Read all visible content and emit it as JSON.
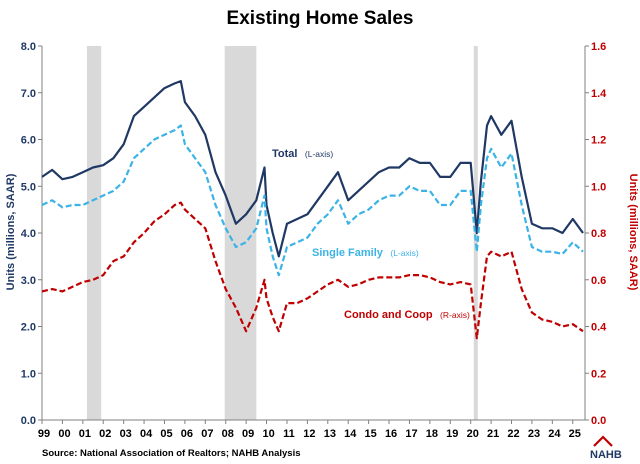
{
  "chart_data": {
    "type": "line",
    "title": "Existing Home Sales",
    "ylabel_left": "Units (millions, SAAR)",
    "ylabel_right": "Units (millions, SAAR)",
    "ylim_left": [
      0,
      8
    ],
    "ylim_right": [
      0,
      1.6
    ],
    "yticks_left": [
      "0.0",
      "1.0",
      "2.0",
      "3.0",
      "4.0",
      "5.0",
      "6.0",
      "7.0",
      "8.0"
    ],
    "yticks_right": [
      "0.0",
      "0.2",
      "0.4",
      "0.6",
      "0.8",
      "1.0",
      "1.2",
      "1.4",
      "1.6"
    ],
    "xticks": [
      "99",
      "00",
      "01",
      "02",
      "03",
      "04",
      "05",
      "06",
      "07",
      "08",
      "09",
      "10",
      "11",
      "12",
      "13",
      "14",
      "15",
      "16",
      "17",
      "18",
      "19",
      "20",
      "21",
      "22",
      "23",
      "24",
      "25"
    ],
    "xlim": [
      1999.0,
      2025.6
    ],
    "grid": false,
    "recession_shading": [
      [
        2001.2,
        2001.9
      ],
      [
        2007.95,
        2009.5
      ],
      [
        2020.15,
        2020.35
      ]
    ],
    "source": "Source: National Association of Realtors; NAHB Analysis",
    "logo": "NAHB",
    "series": [
      {
        "name": "Total",
        "axis_note": "(L-axis)",
        "axis": "left",
        "color": "#1f3864",
        "style": "solid",
        "x": [
          1999.0,
          1999.5,
          2000.0,
          2000.5,
          2001.0,
          2001.5,
          2002.0,
          2002.5,
          2003.0,
          2003.5,
          2004.0,
          2004.5,
          2005.0,
          2005.5,
          2005.8,
          2006.0,
          2006.5,
          2007.0,
          2007.5,
          2008.0,
          2008.5,
          2009.0,
          2009.5,
          2009.9,
          2010.0,
          2010.3,
          2010.6,
          2011.0,
          2011.5,
          2012.0,
          2012.5,
          2013.0,
          2013.5,
          2014.0,
          2014.5,
          2015.0,
          2015.5,
          2016.0,
          2016.5,
          2017.0,
          2017.5,
          2018.0,
          2018.5,
          2019.0,
          2019.5,
          2020.0,
          2020.3,
          2020.5,
          2020.8,
          2021.0,
          2021.5,
          2022.0,
          2022.5,
          2023.0,
          2023.5,
          2024.0,
          2024.5,
          2025.0,
          2025.5
        ],
        "values": [
          5.2,
          5.35,
          5.15,
          5.2,
          5.3,
          5.4,
          5.45,
          5.6,
          5.9,
          6.5,
          6.7,
          6.9,
          7.1,
          7.2,
          7.25,
          6.8,
          6.5,
          6.1,
          5.3,
          4.8,
          4.2,
          4.4,
          4.7,
          5.4,
          4.6,
          4.0,
          3.5,
          4.2,
          4.3,
          4.4,
          4.7,
          5.0,
          5.3,
          4.7,
          4.9,
          5.1,
          5.3,
          5.4,
          5.4,
          5.6,
          5.5,
          5.5,
          5.2,
          5.2,
          5.5,
          5.5,
          4.0,
          5.1,
          6.3,
          6.5,
          6.1,
          6.4,
          5.2,
          4.2,
          4.1,
          4.1,
          4.0,
          4.3,
          4.0
        ]
      },
      {
        "name": "Single Family",
        "axis_note": "(L-axis)",
        "axis": "left",
        "color": "#3bb3e6",
        "style": "dashed",
        "x": [
          1999.0,
          1999.5,
          2000.0,
          2000.5,
          2001.0,
          2001.5,
          2002.0,
          2002.5,
          2003.0,
          2003.5,
          2004.0,
          2004.5,
          2005.0,
          2005.5,
          2005.8,
          2006.0,
          2006.5,
          2007.0,
          2007.5,
          2008.0,
          2008.5,
          2009.0,
          2009.5,
          2009.9,
          2010.0,
          2010.3,
          2010.6,
          2011.0,
          2011.5,
          2012.0,
          2012.5,
          2013.0,
          2013.5,
          2014.0,
          2014.5,
          2015.0,
          2015.5,
          2016.0,
          2016.5,
          2017.0,
          2017.5,
          2018.0,
          2018.5,
          2019.0,
          2019.5,
          2020.0,
          2020.3,
          2020.5,
          2020.8,
          2021.0,
          2021.5,
          2022.0,
          2022.5,
          2023.0,
          2023.5,
          2024.0,
          2024.5,
          2025.0,
          2025.5
        ],
        "values": [
          4.6,
          4.7,
          4.55,
          4.6,
          4.6,
          4.7,
          4.8,
          4.9,
          5.1,
          5.6,
          5.8,
          6.0,
          6.1,
          6.2,
          6.3,
          5.9,
          5.6,
          5.3,
          4.6,
          4.1,
          3.7,
          3.8,
          4.1,
          4.8,
          4.1,
          3.5,
          3.1,
          3.7,
          3.8,
          3.9,
          4.2,
          4.4,
          4.7,
          4.2,
          4.4,
          4.5,
          4.7,
          4.8,
          4.8,
          5.0,
          4.9,
          4.9,
          4.6,
          4.6,
          4.9,
          4.9,
          3.6,
          4.6,
          5.6,
          5.8,
          5.4,
          5.7,
          4.6,
          3.7,
          3.6,
          3.6,
          3.55,
          3.8,
          3.6
        ]
      },
      {
        "name": "Condo and Coop",
        "axis_note": "(R-axis)",
        "axis": "right",
        "color": "#c00000",
        "style": "dashed",
        "x": [
          1999.0,
          1999.5,
          2000.0,
          2000.5,
          2001.0,
          2001.5,
          2002.0,
          2002.5,
          2003.0,
          2003.5,
          2004.0,
          2004.5,
          2005.0,
          2005.5,
          2005.8,
          2006.0,
          2006.5,
          2007.0,
          2007.5,
          2008.0,
          2008.5,
          2009.0,
          2009.5,
          2009.9,
          2010.0,
          2010.3,
          2010.6,
          2011.0,
          2011.5,
          2012.0,
          2012.5,
          2013.0,
          2013.5,
          2014.0,
          2014.5,
          2015.0,
          2015.5,
          2016.0,
          2016.5,
          2017.0,
          2017.5,
          2018.0,
          2018.5,
          2019.0,
          2019.5,
          2020.0,
          2020.3,
          2020.5,
          2020.8,
          2021.0,
          2021.5,
          2022.0,
          2022.5,
          2023.0,
          2023.5,
          2024.0,
          2024.5,
          2025.0,
          2025.5
        ],
        "values": [
          0.55,
          0.56,
          0.55,
          0.57,
          0.59,
          0.6,
          0.62,
          0.68,
          0.7,
          0.76,
          0.8,
          0.85,
          0.88,
          0.92,
          0.93,
          0.9,
          0.86,
          0.82,
          0.68,
          0.56,
          0.48,
          0.38,
          0.48,
          0.6,
          0.52,
          0.44,
          0.38,
          0.5,
          0.5,
          0.52,
          0.55,
          0.58,
          0.6,
          0.57,
          0.58,
          0.6,
          0.61,
          0.61,
          0.61,
          0.62,
          0.62,
          0.61,
          0.59,
          0.58,
          0.59,
          0.58,
          0.35,
          0.5,
          0.7,
          0.72,
          0.7,
          0.72,
          0.56,
          0.46,
          0.43,
          0.42,
          0.4,
          0.41,
          0.38
        ]
      }
    ]
  }
}
